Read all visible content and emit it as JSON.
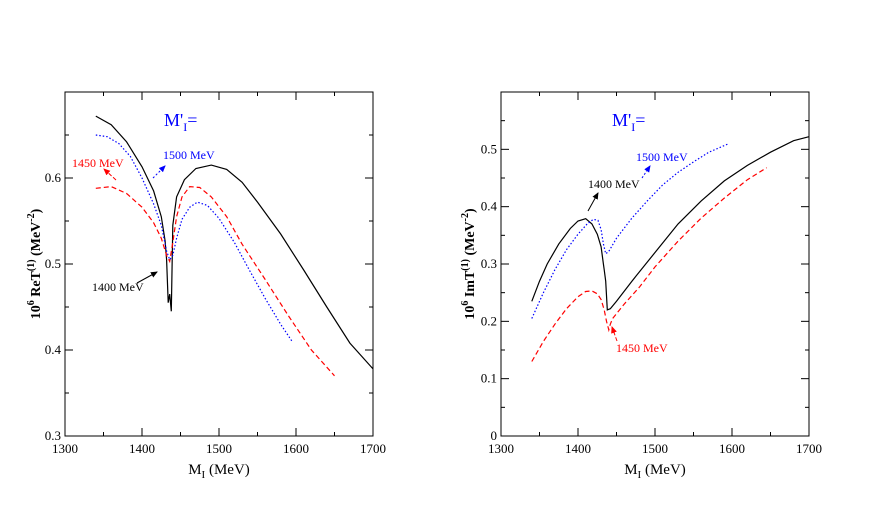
{
  "colors": {
    "black": "#000000",
    "red": "#ff0000",
    "blue": "#0000ff"
  },
  "chart_data": [
    {
      "type": "line",
      "ylabel": "10⁶ ReT⁽¹⁾ (MeV⁻²)",
      "xlabel": "M_I (MeV)",
      "xlim": [
        1300,
        1700
      ],
      "ylim": [
        0.3,
        0.7
      ],
      "xticks": [
        1300,
        1400,
        1500,
        1600,
        1700
      ],
      "yticks": [
        0.3,
        0.4,
        0.5,
        0.6
      ],
      "title_annotation": "M'_I=",
      "series": [
        {
          "name": "1400 MeV",
          "style": "solid",
          "color": "#000000",
          "points": [
            [
              1340,
              0.672
            ],
            [
              1360,
              0.662
            ],
            [
              1380,
              0.642
            ],
            [
              1400,
              0.613
            ],
            [
              1415,
              0.585
            ],
            [
              1425,
              0.555
            ],
            [
              1430,
              0.527
            ],
            [
              1432,
              0.505
            ],
            [
              1434,
              0.455
            ],
            [
              1436,
              0.465
            ],
            [
              1438,
              0.445
            ],
            [
              1440,
              0.545
            ],
            [
              1445,
              0.578
            ],
            [
              1455,
              0.598
            ],
            [
              1470,
              0.611
            ],
            [
              1490,
              0.615
            ],
            [
              1510,
              0.61
            ],
            [
              1530,
              0.595
            ],
            [
              1550,
              0.572
            ],
            [
              1580,
              0.535
            ],
            [
              1610,
              0.493
            ],
            [
              1640,
              0.45
            ],
            [
              1670,
              0.408
            ],
            [
              1700,
              0.378
            ]
          ]
        },
        {
          "name": "1450 MeV",
          "style": "dashed",
          "color": "#ff0000",
          "points": [
            [
              1340,
              0.588
            ],
            [
              1360,
              0.59
            ],
            [
              1380,
              0.582
            ],
            [
              1400,
              0.566
            ],
            [
              1415,
              0.548
            ],
            [
              1425,
              0.53
            ],
            [
              1432,
              0.51
            ],
            [
              1436,
              0.503
            ],
            [
              1440,
              0.525
            ],
            [
              1445,
              0.555
            ],
            [
              1452,
              0.578
            ],
            [
              1462,
              0.59
            ],
            [
              1475,
              0.589
            ],
            [
              1490,
              0.578
            ],
            [
              1510,
              0.555
            ],
            [
              1530,
              0.523
            ],
            [
              1560,
              0.482
            ],
            [
              1590,
              0.44
            ],
            [
              1620,
              0.4
            ],
            [
              1650,
              0.37
            ]
          ]
        },
        {
          "name": "1500 MeV",
          "style": "dotted",
          "color": "#0000ff",
          "points": [
            [
              1340,
              0.65
            ],
            [
              1355,
              0.648
            ],
            [
              1370,
              0.64
            ],
            [
              1385,
              0.625
            ],
            [
              1400,
              0.6
            ],
            [
              1415,
              0.57
            ],
            [
              1425,
              0.545
            ],
            [
              1432,
              0.515
            ],
            [
              1436,
              0.505
            ],
            [
              1440,
              0.51
            ],
            [
              1445,
              0.53
            ],
            [
              1452,
              0.552
            ],
            [
              1462,
              0.566
            ],
            [
              1472,
              0.572
            ],
            [
              1485,
              0.568
            ],
            [
              1500,
              0.553
            ],
            [
              1520,
              0.525
            ],
            [
              1540,
              0.492
            ],
            [
              1560,
              0.46
            ],
            [
              1580,
              0.43
            ],
            [
              1595,
              0.41
            ]
          ]
        }
      ],
      "annotations": [
        "1450 MeV",
        "1500 MeV",
        "1400 MeV"
      ]
    },
    {
      "type": "line",
      "ylabel": "10⁶ ImT⁽¹⁾ (MeV⁻²)",
      "xlabel": "M_I (MeV)",
      "xlim": [
        1300,
        1700
      ],
      "ylim": [
        0,
        0.6
      ],
      "xticks": [
        1300,
        1400,
        1500,
        1600,
        1700
      ],
      "yticks": [
        0,
        0.1,
        0.2,
        0.3,
        0.4,
        0.5
      ],
      "title_annotation": "M'_I=",
      "series": [
        {
          "name": "1400 MeV",
          "style": "solid",
          "color": "#000000",
          "points": [
            [
              1340,
              0.235
            ],
            [
              1350,
              0.27
            ],
            [
              1360,
              0.3
            ],
            [
              1375,
              0.335
            ],
            [
              1390,
              0.362
            ],
            [
              1400,
              0.375
            ],
            [
              1410,
              0.379
            ],
            [
              1418,
              0.37
            ],
            [
              1425,
              0.352
            ],
            [
              1430,
              0.33
            ],
            [
              1433,
              0.3
            ],
            [
              1434,
              0.29
            ],
            [
              1436,
              0.27
            ],
            [
              1438,
              0.22
            ],
            [
              1442,
              0.222
            ],
            [
              1450,
              0.235
            ],
            [
              1470,
              0.27
            ],
            [
              1500,
              0.32
            ],
            [
              1530,
              0.37
            ],
            [
              1560,
              0.41
            ],
            [
              1590,
              0.445
            ],
            [
              1620,
              0.472
            ],
            [
              1650,
              0.495
            ],
            [
              1680,
              0.515
            ],
            [
              1700,
              0.522
            ]
          ]
        },
        {
          "name": "1450 MeV",
          "style": "dashed",
          "color": "#ff0000",
          "points": [
            [
              1340,
              0.13
            ],
            [
              1355,
              0.165
            ],
            [
              1370,
              0.195
            ],
            [
              1385,
              0.222
            ],
            [
              1400,
              0.243
            ],
            [
              1410,
              0.252
            ],
            [
              1418,
              0.253
            ],
            [
              1425,
              0.248
            ],
            [
              1430,
              0.238
            ],
            [
              1434,
              0.22
            ],
            [
              1437,
              0.2
            ],
            [
              1440,
              0.185
            ],
            [
              1442,
              0.195
            ],
            [
              1445,
              0.205
            ],
            [
              1460,
              0.23
            ],
            [
              1480,
              0.26
            ],
            [
              1500,
              0.295
            ],
            [
              1530,
              0.34
            ],
            [
              1560,
              0.38
            ],
            [
              1590,
              0.415
            ],
            [
              1620,
              0.447
            ],
            [
              1645,
              0.468
            ]
          ]
        },
        {
          "name": "1500 MeV",
          "style": "dotted",
          "color": "#0000ff",
          "points": [
            [
              1340,
              0.205
            ],
            [
              1355,
              0.25
            ],
            [
              1370,
              0.29
            ],
            [
              1385,
              0.325
            ],
            [
              1400,
              0.352
            ],
            [
              1412,
              0.37
            ],
            [
              1420,
              0.378
            ],
            [
              1426,
              0.376
            ],
            [
              1430,
              0.36
            ],
            [
              1433,
              0.335
            ],
            [
              1436,
              0.318
            ],
            [
              1440,
              0.322
            ],
            [
              1450,
              0.345
            ],
            [
              1470,
              0.38
            ],
            [
              1490,
              0.41
            ],
            [
              1510,
              0.438
            ],
            [
              1530,
              0.46
            ],
            [
              1550,
              0.478
            ],
            [
              1570,
              0.495
            ],
            [
              1596,
              0.51
            ]
          ]
        }
      ],
      "annotations": [
        "1400 MeV",
        "1500 MeV",
        "1450 MeV"
      ]
    }
  ],
  "labels": {
    "left": {
      "mprime": "M'",
      "mprime_sub": "I",
      "mprime_eq": "=",
      "ann_1450": "1450 MeV",
      "ann_1500": "1500 MeV",
      "ann_1400": "1400 MeV",
      "ylabel_pre": "10",
      "ylabel_sup": "6",
      "ylabel_mid": " ReT",
      "ylabel_sup2": "(1)",
      "ylabel_unit": "  (MeV",
      "ylabel_unit_sup": "-2",
      "ylabel_close": ")",
      "xlabel_m": "M",
      "xlabel_sub": "I",
      "xlabel_unit": " (MeV)"
    },
    "right": {
      "mprime": "M'",
      "mprime_sub": "I",
      "mprime_eq": "=",
      "ann_1400": "1400 MeV",
      "ann_1500": "1500 MeV",
      "ann_1450": "1450 MeV",
      "ylabel_pre": "10",
      "ylabel_sup": "6",
      "ylabel_mid": " ImT",
      "ylabel_sup2": "(1)",
      "ylabel_unit": "  (MeV",
      "ylabel_unit_sup": "-2",
      "ylabel_close": ")",
      "xlabel_m": "M",
      "xlabel_sub": "I",
      "xlabel_unit": " (MeV)"
    }
  }
}
